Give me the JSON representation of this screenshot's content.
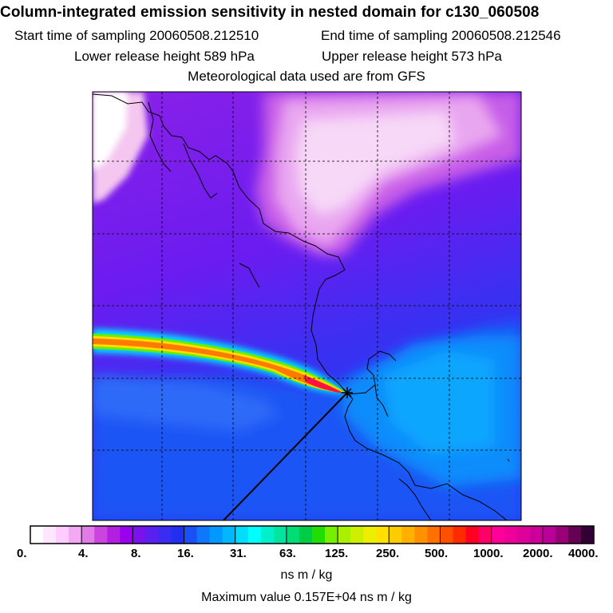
{
  "header": {
    "title": "Column-integrated emission sensitivity in nested domain for c130_060508",
    "start_time": "Start time of sampling 20060508.212510",
    "end_time": "End time of sampling 20060508.212546",
    "lower_release": "Lower release height  589 hPa",
    "upper_release": "Upper release height  573 hPa",
    "met_data": "Meteorological data used are from GFS"
  },
  "colorbar": {
    "tick_labels": [
      "0.",
      "4.",
      "8.",
      "16.",
      "31.",
      "63.",
      "125.",
      "250.",
      "500.",
      "1000.",
      "2000.",
      "4000."
    ],
    "colors": [
      "#ffffff",
      "#ffe6ff",
      "#ffccff",
      "#f2a8f2",
      "#e27ae8",
      "#cc44e0",
      "#b21fe0",
      "#9900ee",
      "#7a12ee",
      "#5a20f0",
      "#3a2cf2",
      "#1f30f2",
      "#1a50f5",
      "#0d78fa",
      "#0099ff",
      "#00b8ff",
      "#00ddff",
      "#00ffff",
      "#00f0cc",
      "#00e6a0",
      "#00dd77",
      "#00cc44",
      "#22dd00",
      "#77ee00",
      "#aaf000",
      "#ccf000",
      "#eeee00",
      "#ffe000",
      "#ffcc00",
      "#ffb000",
      "#ff9000",
      "#ff7000",
      "#ff5000",
      "#ff2a00",
      "#ff0022",
      "#ff0066",
      "#ff0099",
      "#ee0099",
      "#dd0099",
      "#cc0099",
      "#bb0099",
      "#990077",
      "#660055",
      "#330033"
    ],
    "units": "ns m / kg",
    "max_value": "Maximum value  0.157E+04 ns m / kg"
  }
}
